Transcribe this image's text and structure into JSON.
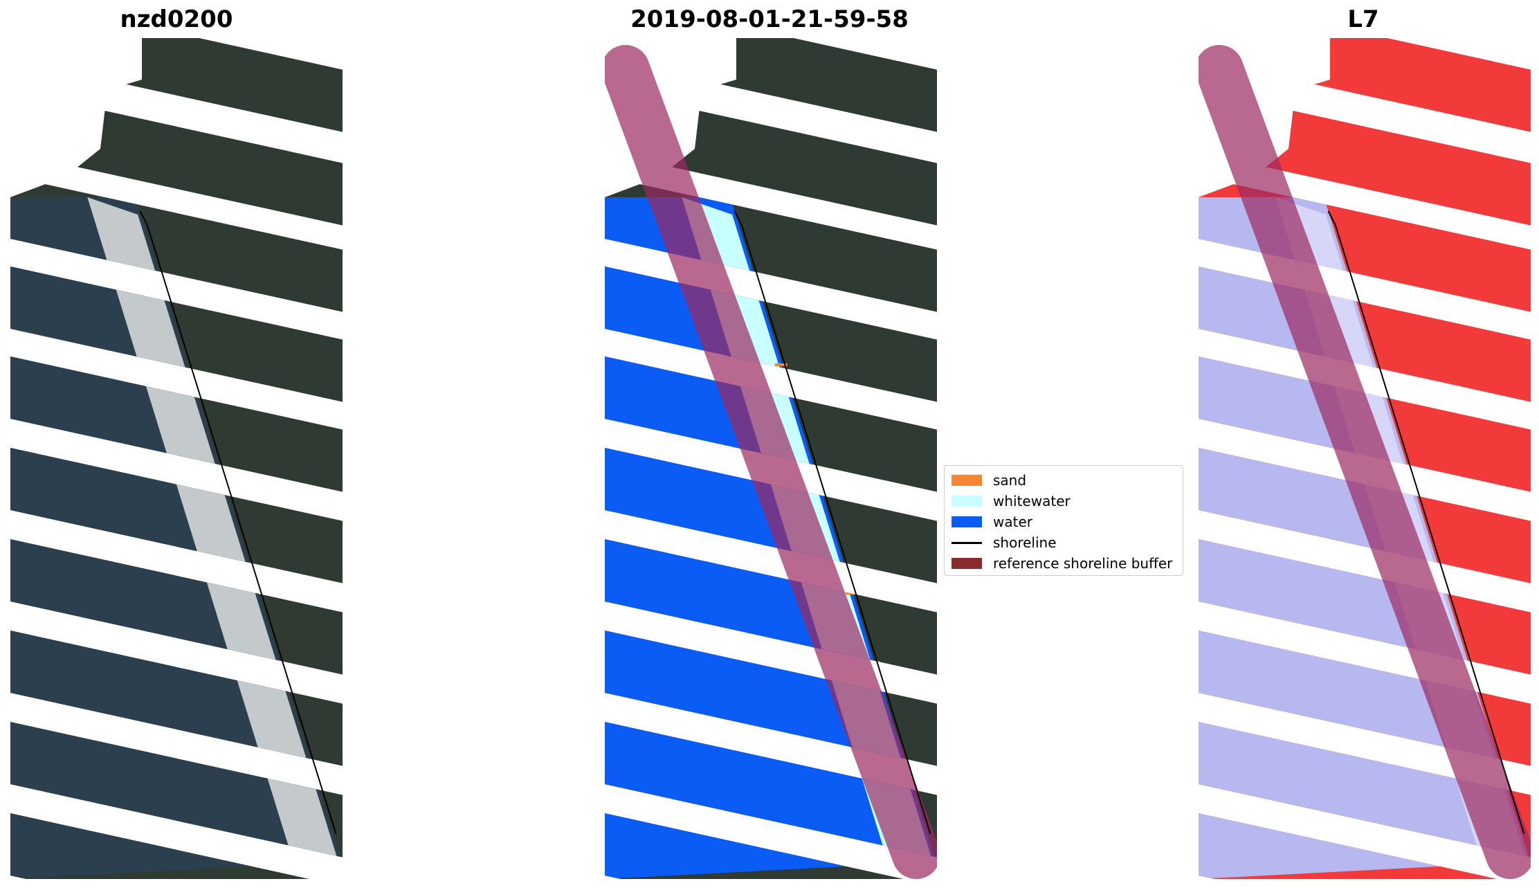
{
  "panels": [
    {
      "title": "nzd0200",
      "kind": "rgb"
    },
    {
      "title": "2019-08-01-21-59-58",
      "kind": "classified"
    },
    {
      "title": "L7",
      "kind": "index"
    }
  ],
  "legend": {
    "items": [
      {
        "label": "sand",
        "type": "patch",
        "color": "#f58634"
      },
      {
        "label": "whitewater",
        "type": "patch",
        "color": "#c8ffff"
      },
      {
        "label": "water",
        "type": "patch",
        "color": "#0a5cf5"
      },
      {
        "label": "shoreline",
        "type": "line",
        "color": "#000000"
      },
      {
        "label": "reference shoreline buffer",
        "type": "patch",
        "color": "#8b2b2f"
      }
    ]
  },
  "colors": {
    "land": "#2e3a32",
    "sea_rgb": "#2b3f4e",
    "cloud": "#dfe3e3",
    "water": "#0a5cf5",
    "whitewater": "#c8ffff",
    "sand": "#f58634",
    "index_land": "#f23a3a",
    "index_water": "#b8b8f0",
    "buffer": "#9c2a62",
    "shoreline": "#000000"
  }
}
